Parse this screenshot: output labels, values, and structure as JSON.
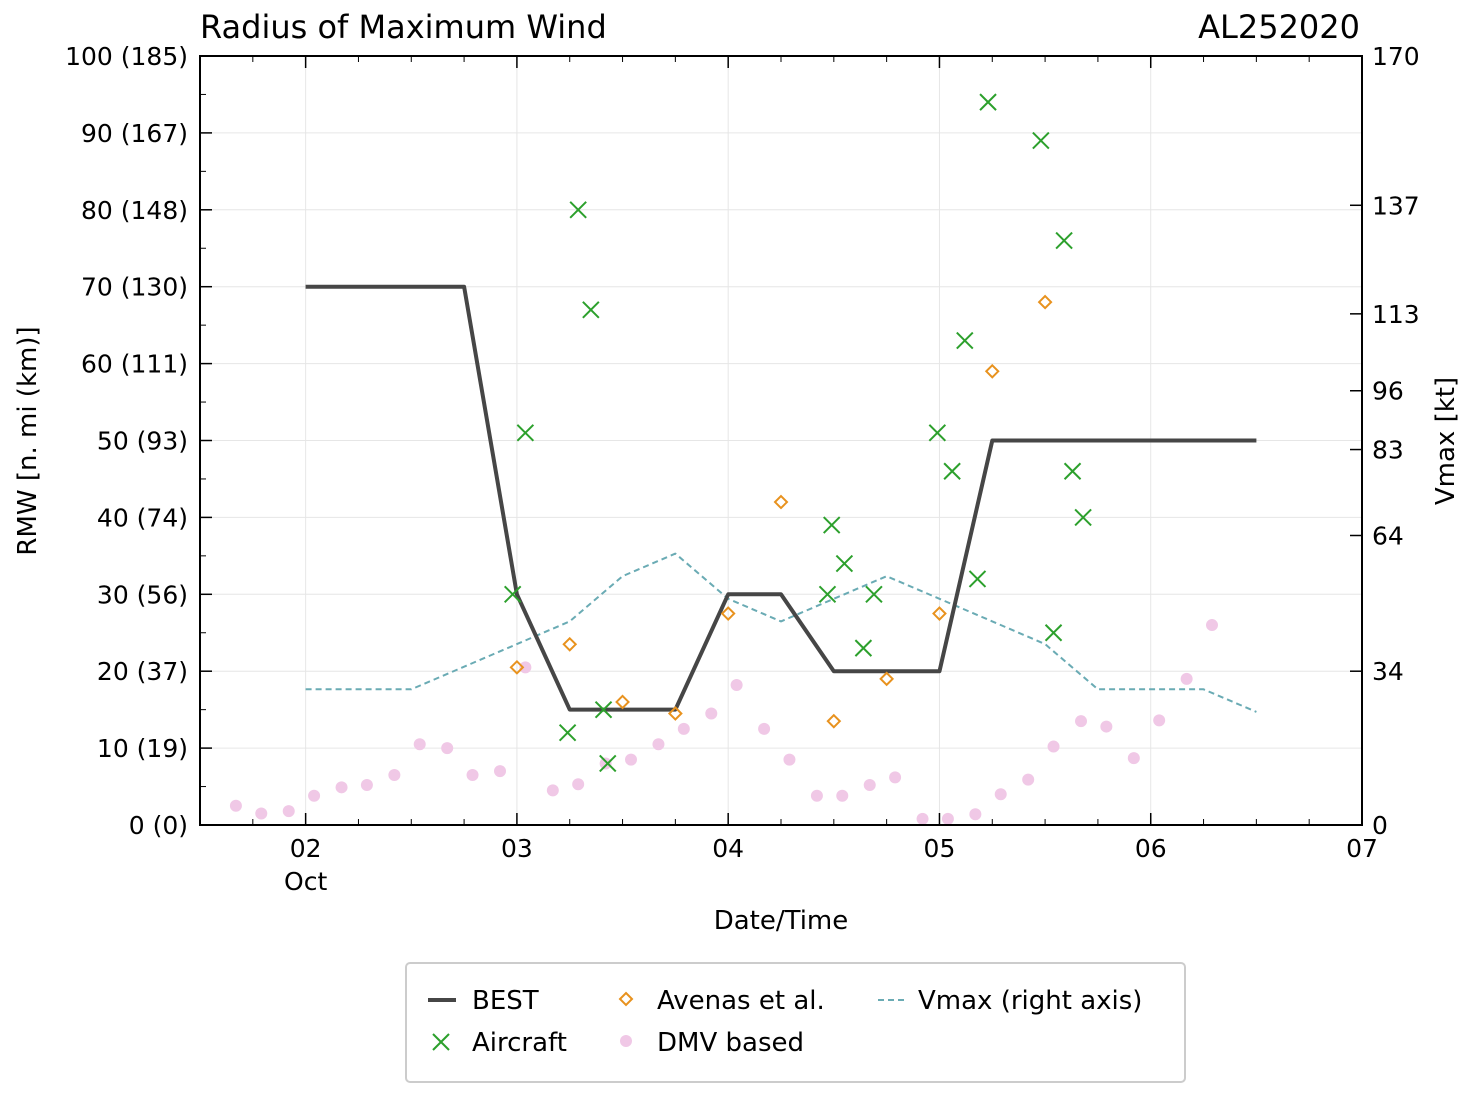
{
  "chart_data": {
    "type": "line",
    "title": "Radius of Maximum Wind",
    "storm_id": "AL252020",
    "xlabel": "Date/Time",
    "ylabel": "RMW [n. mi (km)]",
    "y2label": "Vmax [kt]",
    "x_unit": "days since 2020-10-01 00Z",
    "xlim": [
      1.5,
      7.0
    ],
    "ylim": [
      0,
      100
    ],
    "y2lim": [
      0,
      170
    ],
    "grid": true,
    "x_ticks": [
      {
        "value": 2,
        "label": "02",
        "sublabel": "Oct"
      },
      {
        "value": 3,
        "label": "03",
        "sublabel": ""
      },
      {
        "value": 4,
        "label": "04",
        "sublabel": ""
      },
      {
        "value": 5,
        "label": "05",
        "sublabel": ""
      },
      {
        "value": 6,
        "label": "06",
        "sublabel": ""
      },
      {
        "value": 7,
        "label": "07",
        "sublabel": ""
      }
    ],
    "y_ticks": [
      {
        "value": 0,
        "label": "0 (0)"
      },
      {
        "value": 10,
        "label": "10 (19)"
      },
      {
        "value": 20,
        "label": "20 (37)"
      },
      {
        "value": 30,
        "label": "30 (56)"
      },
      {
        "value": 40,
        "label": "40 (74)"
      },
      {
        "value": 50,
        "label": "50 (93)"
      },
      {
        "value": 60,
        "label": "60 (111)"
      },
      {
        "value": 70,
        "label": "70 (130)"
      },
      {
        "value": 80,
        "label": "80 (148)"
      },
      {
        "value": 90,
        "label": "90 (167)"
      },
      {
        "value": 100,
        "label": "100 (185)"
      }
    ],
    "y2_ticks": [
      {
        "value": 0,
        "label": "0"
      },
      {
        "value": 34,
        "label": "34"
      },
      {
        "value": 64,
        "label": "64"
      },
      {
        "value": 83,
        "label": "83"
      },
      {
        "value": 96,
        "label": "96"
      },
      {
        "value": 113,
        "label": "113"
      },
      {
        "value": 137,
        "label": "137"
      },
      {
        "value": 170,
        "label": "170"
      }
    ],
    "legend": {
      "position": "bottom-center",
      "entries": [
        {
          "key": "best",
          "label": "BEST"
        },
        {
          "key": "aircraft",
          "label": "Aircraft"
        },
        {
          "key": "avenas",
          "label": "Avenas et al."
        },
        {
          "key": "dmv",
          "label": "DMV based"
        },
        {
          "key": "vmax",
          "label": "Vmax (right axis)"
        }
      ]
    },
    "colors": {
      "best": "#464646",
      "aircraft": "#2ca02c",
      "avenas": "#e8921e",
      "dmv": "#f0c8e6",
      "vmax": "#6aabb4",
      "grid": "#e6e6e6",
      "axis": "#000000"
    },
    "series": [
      {
        "key": "best",
        "name": "BEST",
        "axis": "left",
        "style": "line",
        "points": [
          [
            2.0,
            70
          ],
          [
            2.75,
            70
          ],
          [
            3.0,
            30
          ],
          [
            3.25,
            15
          ],
          [
            3.5,
            15
          ],
          [
            3.75,
            15
          ],
          [
            4.0,
            30
          ],
          [
            4.25,
            30
          ],
          [
            4.5,
            20
          ],
          [
            4.75,
            20
          ],
          [
            5.0,
            20
          ],
          [
            5.25,
            50
          ],
          [
            5.5,
            50
          ],
          [
            5.75,
            50
          ],
          [
            6.0,
            50
          ],
          [
            6.25,
            50
          ],
          [
            6.5,
            50
          ]
        ]
      },
      {
        "key": "vmax",
        "name": "Vmax (right axis)",
        "axis": "right",
        "style": "dashed",
        "points": [
          [
            2.0,
            30
          ],
          [
            2.25,
            30
          ],
          [
            2.5,
            30
          ],
          [
            2.75,
            35
          ],
          [
            3.0,
            40
          ],
          [
            3.25,
            45
          ],
          [
            3.5,
            55
          ],
          [
            3.75,
            60
          ],
          [
            4.0,
            50
          ],
          [
            4.25,
            45
          ],
          [
            4.5,
            50
          ],
          [
            4.75,
            55
          ],
          [
            5.0,
            50
          ],
          [
            5.25,
            45
          ],
          [
            5.5,
            40
          ],
          [
            5.75,
            30
          ],
          [
            6.0,
            30
          ],
          [
            6.25,
            30
          ],
          [
            6.5,
            25
          ]
        ]
      },
      {
        "key": "aircraft",
        "name": "Aircraft",
        "axis": "left",
        "style": "x",
        "points": [
          [
            2.98,
            30
          ],
          [
            3.04,
            51
          ],
          [
            3.24,
            12
          ],
          [
            3.29,
            80
          ],
          [
            3.35,
            67
          ],
          [
            3.41,
            15
          ],
          [
            3.43,
            8
          ],
          [
            4.47,
            30
          ],
          [
            4.49,
            39
          ],
          [
            4.55,
            34
          ],
          [
            4.64,
            23
          ],
          [
            4.69,
            30
          ],
          [
            4.99,
            51
          ],
          [
            5.06,
            46
          ],
          [
            5.12,
            63
          ],
          [
            5.18,
            32
          ],
          [
            5.23,
            94
          ],
          [
            5.48,
            89
          ],
          [
            5.54,
            25
          ],
          [
            5.59,
            76
          ],
          [
            5.63,
            46
          ],
          [
            5.68,
            40
          ]
        ]
      },
      {
        "key": "avenas",
        "name": "Avenas et al.",
        "axis": "left",
        "style": "diamond",
        "points": [
          [
            3.0,
            20.5
          ],
          [
            3.25,
            23.5
          ],
          [
            3.5,
            16
          ],
          [
            3.75,
            14.5
          ],
          [
            4.0,
            27.5
          ],
          [
            4.25,
            42
          ],
          [
            4.5,
            13.5
          ],
          [
            4.75,
            19
          ],
          [
            5.0,
            27.5
          ],
          [
            5.25,
            59
          ],
          [
            5.5,
            68
          ]
        ]
      },
      {
        "key": "dmv",
        "name": "DMV based",
        "axis": "left",
        "style": "dot",
        "points": [
          [
            1.67,
            2.5
          ],
          [
            1.79,
            1.5
          ],
          [
            1.92,
            1.8
          ],
          [
            2.04,
            3.8
          ],
          [
            2.17,
            4.9
          ],
          [
            2.29,
            5.2
          ],
          [
            2.42,
            6.5
          ],
          [
            2.54,
            10.5
          ],
          [
            2.67,
            10
          ],
          [
            2.79,
            6.5
          ],
          [
            2.92,
            7
          ],
          [
            3.04,
            20.5
          ],
          [
            3.17,
            4.5
          ],
          [
            3.29,
            5.3
          ],
          [
            3.42,
            8
          ],
          [
            3.54,
            8.5
          ],
          [
            3.67,
            10.5
          ],
          [
            3.79,
            12.5
          ],
          [
            3.92,
            14.5
          ],
          [
            4.04,
            18.2
          ],
          [
            4.17,
            12.5
          ],
          [
            4.29,
            8.5
          ],
          [
            4.42,
            3.8
          ],
          [
            4.54,
            3.8
          ],
          [
            4.67,
            5.2
          ],
          [
            4.79,
            6.2
          ],
          [
            4.92,
            0.8
          ],
          [
            5.04,
            0.8
          ],
          [
            5.17,
            1.4
          ],
          [
            5.29,
            4
          ],
          [
            5.42,
            5.9
          ],
          [
            5.54,
            10.2
          ],
          [
            5.67,
            13.5
          ],
          [
            5.79,
            12.8
          ],
          [
            5.92,
            8.7
          ],
          [
            6.04,
            13.6
          ],
          [
            6.17,
            19
          ],
          [
            6.29,
            26
          ]
        ]
      }
    ]
  }
}
